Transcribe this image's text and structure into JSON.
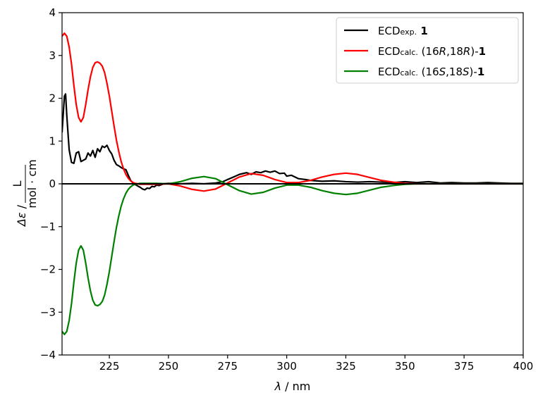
{
  "chart_data": {
    "type": "line",
    "xlabel_symbol": "λ",
    "xlabel_unit": " / nm",
    "ylabel_symbol": "Δε",
    "ylabel_sep": " / ",
    "ylabel_numerator": "L",
    "ylabel_denominator": "mol · cm",
    "xlim": [
      205,
      400
    ],
    "ylim": [
      -4,
      4
    ],
    "x_ticks": [
      "225",
      "250",
      "275",
      "300",
      "325",
      "350",
      "375",
      "400"
    ],
    "y_ticks": [
      "−4",
      "−3",
      "−2",
      "−1",
      "0",
      "1",
      "2",
      "3",
      "4"
    ],
    "grid": false,
    "legend_position": "top-right",
    "reference_line_y": 0,
    "series": [
      {
        "name": "ECDexp. 1",
        "legend_label": {
          "main": "ECD",
          "sub": "exp.",
          "tail": "",
          "bold": "1"
        },
        "color": "#000000",
        "x": [
          205,
          206,
          206.5,
          207,
          208,
          209,
          210,
          211,
          212,
          213,
          214,
          215,
          216,
          217,
          218,
          219,
          220,
          221,
          222,
          223,
          224,
          225,
          226,
          227,
          228,
          229,
          230,
          231,
          232,
          233,
          234,
          235,
          236,
          237,
          238,
          239,
          240,
          241,
          242,
          243,
          244,
          245,
          246,
          247,
          248,
          250,
          255,
          260,
          265,
          270,
          273,
          275,
          278,
          280,
          283,
          285,
          287,
          289,
          291,
          293,
          295,
          297,
          299,
          300,
          302,
          305,
          308,
          310,
          315,
          320,
          325,
          330,
          335,
          340,
          345,
          350,
          355,
          360,
          365,
          370,
          375,
          380,
          385,
          390,
          395,
          400
        ],
        "y": [
          1.2,
          2.05,
          2.1,
          1.6,
          0.8,
          0.5,
          0.48,
          0.72,
          0.75,
          0.52,
          0.55,
          0.58,
          0.72,
          0.65,
          0.78,
          0.62,
          0.82,
          0.75,
          0.88,
          0.85,
          0.9,
          0.78,
          0.7,
          0.55,
          0.45,
          0.42,
          0.38,
          0.35,
          0.33,
          0.2,
          0.08,
          0.02,
          -0.02,
          -0.05,
          -0.08,
          -0.12,
          -0.14,
          -0.1,
          -0.11,
          -0.06,
          -0.07,
          -0.03,
          -0.04,
          -0.02,
          0.0,
          0.01,
          0.0,
          0.01,
          0.0,
          0.02,
          0.05,
          0.1,
          0.17,
          0.22,
          0.26,
          0.22,
          0.28,
          0.26,
          0.3,
          0.27,
          0.3,
          0.24,
          0.25,
          0.18,
          0.2,
          0.12,
          0.1,
          0.08,
          0.06,
          0.07,
          0.05,
          0.04,
          0.05,
          0.04,
          0.03,
          0.05,
          0.03,
          0.05,
          0.02,
          0.03,
          0.02,
          0.02,
          0.03,
          0.02,
          0.01,
          0.01
        ]
      },
      {
        "name": "ECDcalc. (16R,18R)-1",
        "legend_label": {
          "main": "ECD",
          "sub": "calc.",
          "tail": " (16",
          "it1": "R",
          "mid": ",18",
          "it2": "R",
          "end": ")-",
          "bold": "1"
        },
        "color": "#ff0000",
        "x": [
          205,
          206,
          207,
          208,
          209,
          210,
          211,
          212,
          213,
          214,
          215,
          216,
          217,
          218,
          219,
          220,
          221,
          222,
          223,
          224,
          225,
          226,
          227,
          228,
          229,
          230,
          231,
          232,
          233,
          234,
          235,
          236,
          237,
          238,
          239,
          240,
          242,
          245,
          250,
          255,
          260,
          265,
          270,
          275,
          280,
          285,
          290,
          295,
          300,
          305,
          310,
          315,
          320,
          325,
          330,
          335,
          340,
          345,
          350,
          355,
          360,
          370,
          380,
          390,
          400
        ],
        "y": [
          3.45,
          3.52,
          3.45,
          3.2,
          2.8,
          2.3,
          1.85,
          1.55,
          1.45,
          1.55,
          1.85,
          2.2,
          2.5,
          2.72,
          2.83,
          2.85,
          2.82,
          2.75,
          2.6,
          2.35,
          2.05,
          1.7,
          1.35,
          1.02,
          0.75,
          0.52,
          0.35,
          0.22,
          0.13,
          0.07,
          0.03,
          0.01,
          0.0,
          -0.01,
          -0.01,
          -0.01,
          -0.01,
          -0.01,
          0.0,
          -0.05,
          -0.13,
          -0.17,
          -0.12,
          0.02,
          0.16,
          0.24,
          0.2,
          0.1,
          0.03,
          0.03,
          0.08,
          0.16,
          0.22,
          0.25,
          0.22,
          0.15,
          0.08,
          0.04,
          0.01,
          0.0,
          0.0,
          0.0,
          0.0,
          0.0,
          0.0
        ]
      },
      {
        "name": "ECDcalc. (16S,18S)-1",
        "legend_label": {
          "main": "ECD",
          "sub": "calc.",
          "tail": " (16",
          "it1": "S",
          "mid": ",18",
          "it2": "S",
          "end": ")-",
          "bold": "1"
        },
        "color": "#008000",
        "x": [
          205,
          206,
          207,
          208,
          209,
          210,
          211,
          212,
          213,
          214,
          215,
          216,
          217,
          218,
          219,
          220,
          221,
          222,
          223,
          224,
          225,
          226,
          227,
          228,
          229,
          230,
          231,
          232,
          233,
          234,
          235,
          236,
          237,
          238,
          239,
          240,
          242,
          245,
          250,
          255,
          260,
          265,
          270,
          275,
          280,
          285,
          290,
          295,
          300,
          305,
          310,
          315,
          320,
          325,
          330,
          335,
          340,
          345,
          350,
          355,
          360,
          370,
          380,
          390,
          400
        ],
        "y": [
          -3.45,
          -3.52,
          -3.45,
          -3.2,
          -2.8,
          -2.3,
          -1.85,
          -1.55,
          -1.45,
          -1.55,
          -1.85,
          -2.2,
          -2.5,
          -2.72,
          -2.83,
          -2.85,
          -2.82,
          -2.75,
          -2.6,
          -2.35,
          -2.05,
          -1.7,
          -1.35,
          -1.02,
          -0.75,
          -0.52,
          -0.35,
          -0.22,
          -0.13,
          -0.07,
          -0.03,
          -0.01,
          0.0,
          0.01,
          0.01,
          0.01,
          0.01,
          0.01,
          0.0,
          0.05,
          0.13,
          0.17,
          0.12,
          -0.02,
          -0.16,
          -0.24,
          -0.2,
          -0.1,
          -0.03,
          -0.03,
          -0.08,
          -0.16,
          -0.22,
          -0.25,
          -0.22,
          -0.15,
          -0.08,
          -0.04,
          -0.01,
          0.0,
          0.0,
          0.0,
          0.0,
          0.0,
          0.0
        ]
      }
    ]
  }
}
